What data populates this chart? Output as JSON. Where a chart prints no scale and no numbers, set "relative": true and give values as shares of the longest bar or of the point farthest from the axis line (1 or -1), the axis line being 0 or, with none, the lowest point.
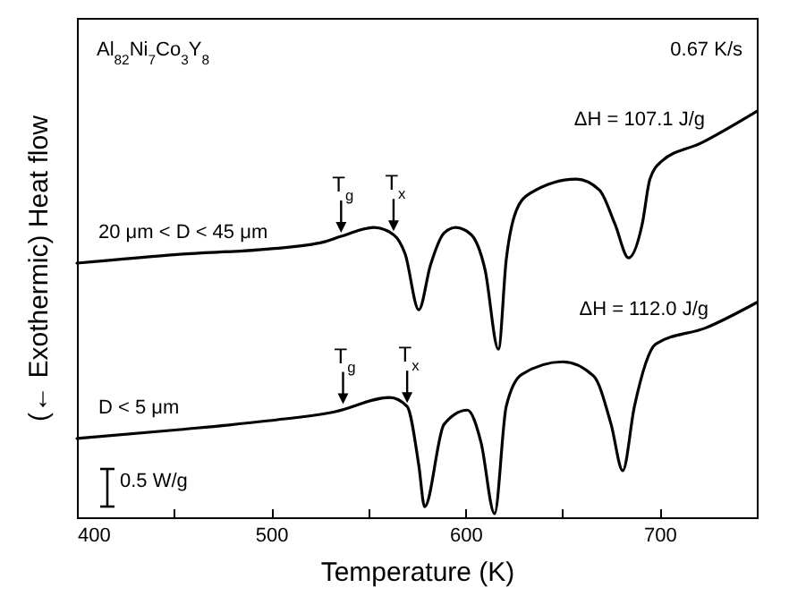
{
  "chart_data": {
    "type": "line",
    "relative": true,
    "xlabel": "Temperature (K)",
    "ylabel": "(← Exothermic) Heat flow",
    "xlim": [
      400,
      750
    ],
    "xticks": [
      400,
      {
        "value": 450,
        "label": null
      },
      500,
      {
        "value": 550,
        "label": null
      },
      600,
      {
        "value": 650,
        "label": null
      },
      700
    ],
    "tick_labels": "x",
    "series": [
      {
        "name": "20 μm < D < 45 μm",
        "color": "#000000",
        "x": [
          400,
          453,
          499,
          527,
          536,
          553,
          563,
          569,
          576,
          582,
          589,
          595,
          603,
          610,
          617,
          621,
          626,
          633,
          657,
          669,
          677,
          684,
          691,
          695,
          701,
          721,
          750
        ],
        "values": [
          0.626,
          0.648,
          0.661,
          0.678,
          0.692,
          0.714,
          0.696,
          0.648,
          0.511,
          0.621,
          0.7,
          0.714,
          0.696,
          0.612,
          0.414,
          0.634,
          0.753,
          0.797,
          0.833,
          0.806,
          0.722,
          0.639,
          0.722,
          0.833,
          0.877,
          0.921,
          1.0
        ]
      },
      {
        "name": "D < 5 μm",
        "color": "#000000",
        "x": [
          400,
          453,
          499,
          533,
          561,
          570,
          576,
          579,
          589,
          601,
          608,
          615,
          621,
          629,
          650,
          666,
          675,
          681,
          687,
          698,
          724,
          750
        ],
        "values": [
          0.194,
          0.216,
          0.238,
          0.26,
          0.295,
          0.273,
          0.128,
          0.026,
          0.229,
          0.264,
          0.185,
          0.009,
          0.273,
          0.352,
          0.383,
          0.348,
          0.229,
          0.115,
          0.273,
          0.427,
          0.467,
          0.529
        ]
      }
    ],
    "annotations": [
      "Al$_{82}$Ni$_{7}$Co$_{3}$Y$_{8}$",
      "0.67 K/s",
      "ΔH = 107.1 J/g",
      "ΔH = 112.0 J/g",
      "0.5 W/g",
      {
        "text": "T$_{g}$",
        "x": 536,
        "y": 0.692
      },
      {
        "text": "T$_{x}$",
        "x": 563,
        "y": 0.696
      },
      {
        "text": "T$_{g}$",
        "x": 537,
        "y": 0.27
      },
      {
        "text": "T$_{x}$",
        "x": 570,
        "y": 0.273
      }
    ]
  }
}
